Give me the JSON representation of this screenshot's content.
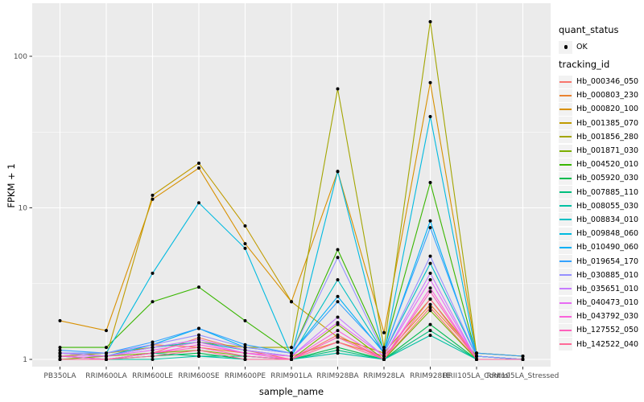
{
  "chart": {
    "panel_bg": "#EBEBEB",
    "grid_color": "#FFFFFF",
    "axis_text_color": "#4D4D4D",
    "tick_color": "#333333",
    "point_color": "#000000"
  },
  "chart_data": {
    "type": "line",
    "title": "",
    "xlabel": "sample_name",
    "ylabel": "FPKM + 1",
    "y_scale": "log10",
    "y_ticks": [
      "1",
      "10",
      "100"
    ],
    "y_tick_values": [
      1,
      10,
      100
    ],
    "y_minor_values": [
      3.1623,
      31.623
    ],
    "ylim": [
      0.9,
      220
    ],
    "grid": true,
    "legend_position": "right",
    "point_marker": "black dot (quant_status OK)",
    "categories": [
      "PB350LA",
      "RRIM600LA",
      "RRIM600LE",
      "RRIM600SE",
      "RRIM600PE",
      "RRIM901LA",
      "RRIM928BA",
      "RRIM928LA",
      "RRIM928LE",
      "RRII105LA_Control",
      "RRII105LA_Stressed"
    ],
    "series": [
      {
        "name": "Hb_000346_050",
        "color": "#F8766D",
        "values": [
          1.05,
          1.0,
          1.1,
          1.39,
          1.15,
          1.0,
          1.45,
          1.0,
          2.2,
          1.0,
          1.0
        ]
      },
      {
        "name": "Hb_000803_230",
        "color": "#EA8331",
        "values": [
          1.1,
          1.05,
          1.25,
          1.2,
          1.1,
          1.05,
          1.3,
          1.05,
          2.3,
          1.05,
          1.0
        ]
      },
      {
        "name": "Hb_000820_100",
        "color": "#D89000",
        "values": [
          1.8,
          1.55,
          11.4,
          18.3,
          5.8,
          2.4,
          17.4,
          1.5,
          67,
          1.1,
          1.05
        ]
      },
      {
        "name": "Hb_001385_070",
        "color": "#C09B00",
        "values": [
          1.1,
          1.05,
          12.1,
          19.7,
          7.6,
          2.4,
          1.4,
          1.1,
          2.5,
          1.05,
          1.0
        ]
      },
      {
        "name": "Hb_001856_280",
        "color": "#A3A500",
        "values": [
          1.05,
          1.1,
          1.2,
          1.3,
          1.2,
          1.2,
          61,
          1.2,
          169,
          1.1,
          1.05
        ]
      },
      {
        "name": "Hb_001871_030",
        "color": "#7CAE00",
        "values": [
          1.0,
          1.05,
          1.1,
          1.15,
          1.05,
          1.0,
          1.7,
          1.0,
          2.1,
          1.0,
          1.0
        ]
      },
      {
        "name": "Hb_004520_010",
        "color": "#39B600",
        "values": [
          1.2,
          1.2,
          2.4,
          3.0,
          1.8,
          1.1,
          5.3,
          1.15,
          14.7,
          1.05,
          1.0
        ]
      },
      {
        "name": "Hb_005920_030",
        "color": "#00BB4E",
        "values": [
          1.0,
          1.0,
          1.05,
          1.1,
          1.0,
          1.0,
          1.2,
          1.0,
          1.7,
          1.0,
          1.0
        ]
      },
      {
        "name": "Hb_007885_110",
        "color": "#00BF7D",
        "values": [
          1.05,
          1.0,
          1.1,
          1.05,
          1.05,
          1.0,
          1.15,
          1.0,
          1.55,
          1.0,
          1.0
        ]
      },
      {
        "name": "Hb_008055_030",
        "color": "#00C1A3",
        "values": [
          1.0,
          1.0,
          1.0,
          1.05,
          1.0,
          1.0,
          1.1,
          1.0,
          1.44,
          1.0,
          1.0
        ]
      },
      {
        "name": "Hb_008834_010",
        "color": "#00BFC4",
        "values": [
          1.05,
          1.05,
          1.2,
          1.3,
          1.15,
          1.05,
          3.35,
          1.1,
          4.3,
          1.05,
          1.0
        ]
      },
      {
        "name": "Hb_009848_060",
        "color": "#00BAE0",
        "values": [
          1.1,
          1.1,
          3.7,
          10.8,
          5.4,
          1.05,
          17.4,
          1.1,
          40,
          1.05,
          1.0
        ]
      },
      {
        "name": "Hb_010490_060",
        "color": "#00B0F6",
        "values": [
          1.1,
          1.05,
          1.25,
          1.6,
          1.2,
          1.1,
          2.6,
          1.1,
          8.2,
          1.05,
          1.0
        ]
      },
      {
        "name": "Hb_019654_170",
        "color": "#35A2FF",
        "values": [
          1.15,
          1.1,
          1.3,
          1.6,
          1.25,
          1.1,
          2.4,
          1.13,
          7.4,
          1.1,
          1.05
        ]
      },
      {
        "name": "Hb_030885_010",
        "color": "#9590FF",
        "values": [
          1.1,
          1.1,
          1.25,
          1.45,
          1.2,
          1.1,
          4.7,
          1.1,
          4.8,
          1.05,
          1.0
        ]
      },
      {
        "name": "Hb_035651_010",
        "color": "#C77CFF",
        "values": [
          1.1,
          1.05,
          1.2,
          1.35,
          1.15,
          1.05,
          1.9,
          1.05,
          3.7,
          1.0,
          1.0
        ]
      },
      {
        "name": "Hb_040473_010",
        "color": "#E76BF3",
        "values": [
          1.05,
          1.05,
          1.15,
          1.3,
          1.1,
          1.05,
          1.75,
          1.05,
          3.35,
          1.0,
          1.0
        ]
      },
      {
        "name": "Hb_043792_030",
        "color": "#FA62DB",
        "values": [
          1.05,
          1.0,
          1.1,
          1.25,
          1.1,
          1.0,
          1.55,
          1.0,
          2.96,
          1.0,
          1.0
        ]
      },
      {
        "name": "Hb_127552_050",
        "color": "#FF62BC",
        "values": [
          1.0,
          1.0,
          1.1,
          1.2,
          1.05,
          1.0,
          1.4,
          1.0,
          2.8,
          1.0,
          1.0
        ]
      },
      {
        "name": "Hb_142522_040",
        "color": "#FF6A98",
        "values": [
          1.0,
          1.0,
          1.05,
          1.15,
          1.0,
          1.0,
          1.3,
          1.0,
          2.5,
          1.0,
          1.0
        ]
      }
    ]
  },
  "legend": {
    "quant_status": {
      "title": "quant_status",
      "items": [
        {
          "label": "OK"
        }
      ]
    },
    "tracking": {
      "title": "tracking_id"
    }
  }
}
